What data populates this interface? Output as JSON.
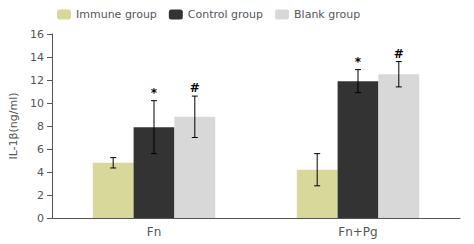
{
  "chart_data": {
    "type": "bar",
    "categories": [
      "Fn",
      "Fn+Pg"
    ],
    "series": [
      {
        "name": "Immune group",
        "color": "#d8d89a",
        "values": [
          4.8,
          4.2
        ],
        "errors": [
          0.45,
          1.4
        ]
      },
      {
        "name": "Control group",
        "color": "#333333",
        "values": [
          7.9,
          11.9
        ],
        "errors": [
          2.3,
          1.0
        ]
      },
      {
        "name": "Blank group",
        "color": "#d8d8d8",
        "values": [
          8.8,
          12.5
        ],
        "errors": [
          1.8,
          1.1
        ]
      }
    ],
    "ylabel": "IL-1β(ng/ml)",
    "ylim": [
      0,
      16
    ],
    "yticks": [
      0,
      2,
      4,
      6,
      8,
      10,
      12,
      14,
      16
    ],
    "grid": false,
    "legend": "upper left",
    "annotations": [
      {
        "text": "*",
        "category": "Fn",
        "series": "Control group"
      },
      {
        "text": "#",
        "category": "Fn",
        "series": "Blank group"
      },
      {
        "text": "*",
        "category": "Fn+Pg",
        "series": "Control group"
      },
      {
        "text": "#",
        "category": "Fn+Pg",
        "series": "Blank group"
      }
    ]
  }
}
